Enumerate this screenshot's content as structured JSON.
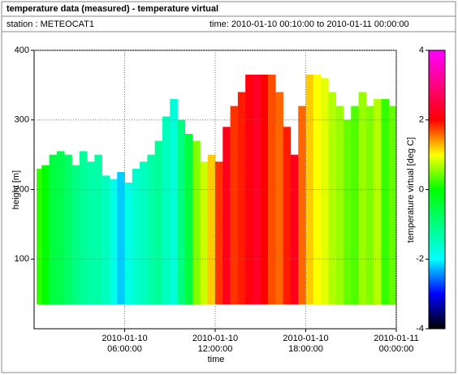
{
  "chart_data": {
    "type": "heatmap",
    "title": "temperature data (measured) - temperature virtual",
    "subtitle": "station : METEOCAT1",
    "period": "time: 2010-01-10 00:10:00 to 2010-01-11 00:00:00",
    "xlabel": "time",
    "ylabel": "height [m]",
    "colorbar_label": "temperature virtual [deg C]",
    "x": [
      "2010-01-10 00:10:00",
      "2010-01-10 00:30:00",
      "2010-01-10 01:00:00",
      "2010-01-10 01:30:00",
      "2010-01-10 02:00:00",
      "2010-01-10 02:30:00",
      "2010-01-10 03:00:00",
      "2010-01-10 03:30:00",
      "2010-01-10 04:00:00",
      "2010-01-10 04:30:00",
      "2010-01-10 05:00:00",
      "2010-01-10 05:30:00",
      "2010-01-10 06:00:00",
      "2010-01-10 06:30:00",
      "2010-01-10 07:00:00",
      "2010-01-10 07:30:00",
      "2010-01-10 08:00:00",
      "2010-01-10 08:30:00",
      "2010-01-10 09:00:00",
      "2010-01-10 09:30:00",
      "2010-01-10 10:00:00",
      "2010-01-10 10:30:00",
      "2010-01-10 11:00:00",
      "2010-01-10 11:30:00",
      "2010-01-10 12:00:00",
      "2010-01-10 12:30:00",
      "2010-01-10 13:00:00",
      "2010-01-10 13:30:00",
      "2010-01-10 14:00:00",
      "2010-01-10 14:30:00",
      "2010-01-10 15:00:00",
      "2010-01-10 15:30:00",
      "2010-01-10 16:00:00",
      "2010-01-10 16:30:00",
      "2010-01-10 17:00:00",
      "2010-01-10 17:30:00",
      "2010-01-10 18:00:00",
      "2010-01-10 18:30:00",
      "2010-01-10 19:00:00",
      "2010-01-10 19:30:00",
      "2010-01-10 20:00:00",
      "2010-01-10 20:30:00",
      "2010-01-10 21:00:00",
      "2010-01-10 21:30:00",
      "2010-01-10 22:00:00",
      "2010-01-10 22:30:00",
      "2010-01-10 23:00:00",
      "2010-01-10 23:30:00"
    ],
    "values": [
      0.2,
      0,
      -0.5,
      -0.6,
      -0.8,
      -1,
      -1.2,
      -1.3,
      -1.3,
      -1.5,
      -1.8,
      -2.2,
      -1.8,
      -1.6,
      -1.5,
      -1.3,
      -1.2,
      -1.5,
      -1.7,
      -1,
      -0.5,
      0.5,
      0.8,
      1.2,
      1.8,
      2.2,
      1.8,
      1.9,
      2.1,
      2.3,
      2,
      1.7,
      1.6,
      1.9,
      2.2,
      1.6,
      1.2,
      1,
      0.9,
      0.7,
      0.6,
      0.4,
      0.3,
      0.6,
      0.5,
      0.7,
      0.2,
      0.4
    ],
    "tops": [
      230,
      235,
      250,
      255,
      250,
      235,
      255,
      240,
      250,
      220,
      215,
      225,
      210,
      230,
      240,
      250,
      270,
      305,
      330,
      300,
      280,
      270,
      240,
      250,
      240,
      290,
      320,
      340,
      365,
      365,
      365,
      365,
      340,
      290,
      250,
      320,
      365,
      365,
      360,
      340,
      320,
      300,
      320,
      340,
      320,
      330,
      330,
      320
    ],
    "base": 35,
    "xlim": [
      "2010-01-10 00:00:00",
      "2010-01-11 00:00:00"
    ],
    "xticks": [
      {
        "value": "2010-01-10 06:00:00",
        "label": "2010-01-10\n06:00:00"
      },
      {
        "value": "2010-01-10 12:00:00",
        "label": "2010-01-10\n12:00:00"
      },
      {
        "value": "2010-01-10 18:00:00",
        "label": "2010-01-10\n18:00:00"
      },
      {
        "value": "2010-01-11 00:00:00",
        "label": "2010-01-11\n00:00:00"
      }
    ],
    "ylim": [
      0,
      400
    ],
    "yticks": [
      100,
      200,
      300,
      400
    ],
    "clim": [
      -4,
      4
    ],
    "cticks": [
      -4,
      -2,
      0,
      2,
      4
    ],
    "colorscale": [
      [
        -4,
        "#000000"
      ],
      [
        -3,
        "#0000ff"
      ],
      [
        -2,
        "#00ffff"
      ],
      [
        0,
        "#00ff00"
      ],
      [
        1,
        "#ffff00"
      ],
      [
        2,
        "#ff0000"
      ],
      [
        4,
        "#ff00ff"
      ]
    ],
    "grid": true
  }
}
